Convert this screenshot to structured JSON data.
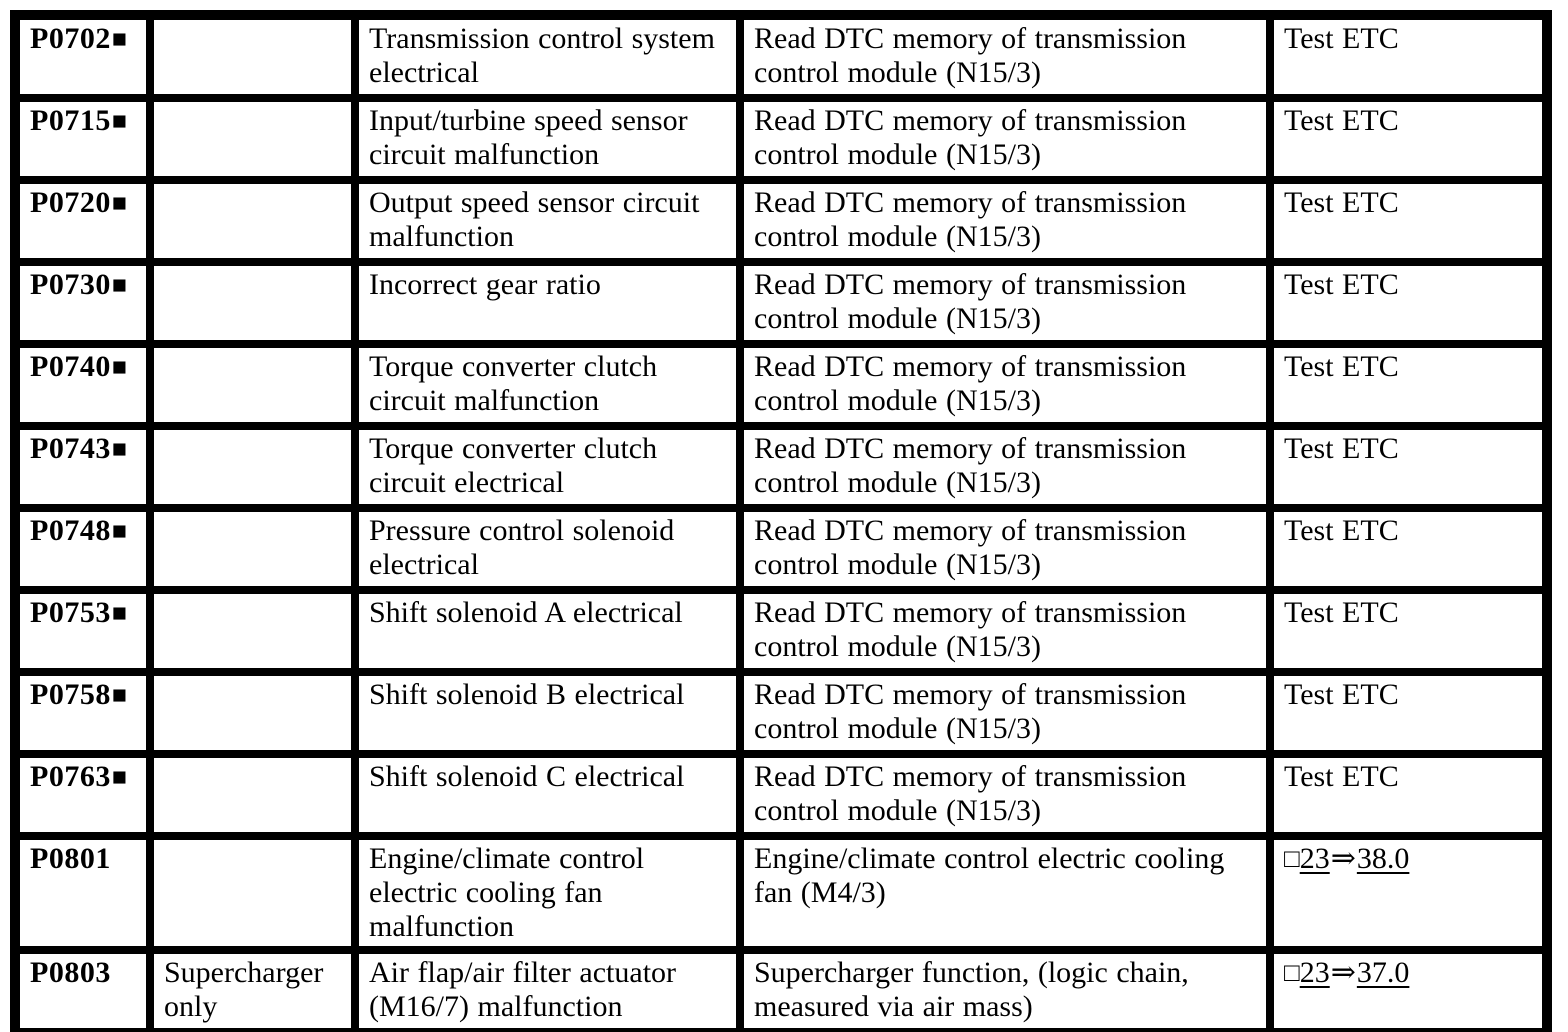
{
  "colors": {
    "background": "#ffffff",
    "text": "#000000",
    "border": "#000000"
  },
  "symbols": {
    "flag_square": "■",
    "reference_prefix_square": "□",
    "reference_arrow": "⇒"
  },
  "table": {
    "column_names": [
      "dtc-code",
      "variant",
      "description",
      "action",
      "test-reference"
    ],
    "rows": [
      {
        "code": "P0702",
        "flagged": true,
        "variant": "",
        "description": "Transmission control system electrical",
        "action": "Read DTC memory of transmission control module (N15/3)",
        "test": {
          "kind": "plain",
          "text": "Test ETC"
        }
      },
      {
        "code": "P0715",
        "flagged": true,
        "variant": "",
        "description": "Input/turbine speed sensor circuit malfunction",
        "action": "Read DTC memory of transmission control module (N15/3)",
        "test": {
          "kind": "plain",
          "text": "Test ETC"
        }
      },
      {
        "code": "P0720",
        "flagged": true,
        "variant": "",
        "description": "Output speed sensor circuit malfunction",
        "action": "Read DTC memory of transmission control module (N15/3)",
        "test": {
          "kind": "plain",
          "text": "Test ETC"
        }
      },
      {
        "code": "P0730",
        "flagged": true,
        "variant": "",
        "description": "Incorrect gear ratio",
        "action": "Read DTC memory of transmission control module (N15/3)",
        "test": {
          "kind": "plain",
          "text": "Test ETC"
        }
      },
      {
        "code": "P0740",
        "flagged": true,
        "variant": "",
        "description": "Torque converter clutch circuit malfunction",
        "action": "Read DTC memory of transmission control module (N15/3)",
        "test": {
          "kind": "plain",
          "text": "Test ETC"
        }
      },
      {
        "code": "P0743",
        "flagged": true,
        "variant": "",
        "description": "Torque converter clutch circuit electrical",
        "action": "Read DTC memory of transmission control module (N15/3)",
        "test": {
          "kind": "plain",
          "text": "Test ETC"
        }
      },
      {
        "code": "P0748",
        "flagged": true,
        "variant": "",
        "description": "Pressure control solenoid electrical",
        "action": "Read DTC memory of transmission control module (N15/3)",
        "test": {
          "kind": "plain",
          "text": "Test ETC"
        }
      },
      {
        "code": "P0753",
        "flagged": true,
        "variant": "",
        "description": "Shift solenoid A electrical",
        "action": "Read DTC memory of transmission control module (N15/3)",
        "test": {
          "kind": "plain",
          "text": "Test ETC"
        }
      },
      {
        "code": "P0758",
        "flagged": true,
        "variant": "",
        "description": "Shift solenoid B electrical",
        "action": "Read DTC memory of transmission control module (N15/3)",
        "test": {
          "kind": "plain",
          "text": "Test ETC"
        }
      },
      {
        "code": "P0763",
        "flagged": true,
        "variant": "",
        "description": "Shift solenoid C electrical",
        "action": "Read DTC memory of transmission control module (N15/3)",
        "test": {
          "kind": "plain",
          "text": "Test ETC"
        }
      },
      {
        "code": "P0801",
        "flagged": false,
        "variant": "",
        "description": "Engine/climate control electric cooling fan malfunction",
        "action": "Engine/climate control electric cooling fan (M4/3)",
        "test": {
          "kind": "reference",
          "prefix": "□",
          "document": "23",
          "arrow": "⇒",
          "section": "38.0"
        }
      },
      {
        "code": "P0803",
        "flagged": false,
        "variant": "Supercharger only",
        "description": "Air flap/air filter actuator (M16/7) malfunction",
        "action": "Supercharger function, (logic chain, measured via air mass)",
        "test": {
          "kind": "reference",
          "prefix": "□",
          "document": "23",
          "arrow": "⇒",
          "section": "37.0"
        }
      }
    ]
  }
}
